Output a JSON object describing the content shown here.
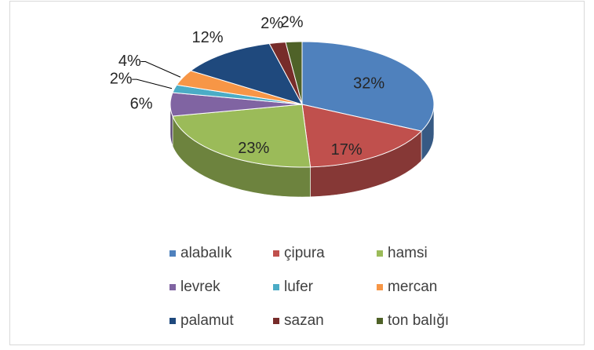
{
  "chart_data": {
    "type": "pie3d",
    "categories": [
      "alabalık",
      "çipura",
      "hamsi",
      "levrek",
      "lufer",
      "mercan",
      "palamut",
      "sazan",
      "ton balığı"
    ],
    "values": [
      32,
      17,
      23,
      6,
      2,
      4,
      12,
      2,
      2
    ],
    "value_labels": [
      "32%",
      "17%",
      "23%",
      "6%",
      "2%",
      "4%",
      "12%",
      "2%",
      "2%"
    ],
    "colors": [
      "#4f81bd",
      "#c0504d",
      "#9bbb59",
      "#8064a2",
      "#4bacc6",
      "#f79646",
      "#1f497d",
      "#772c2a",
      "#4f6228"
    ],
    "legend": "bottom"
  }
}
